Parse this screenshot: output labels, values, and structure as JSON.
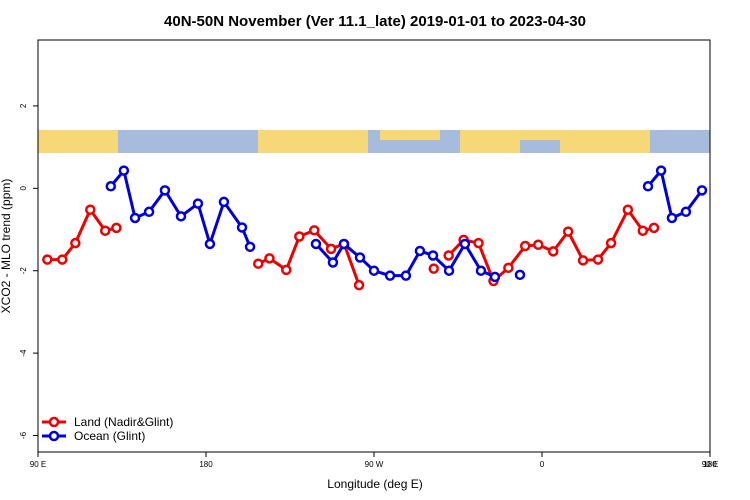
{
  "chart_data": {
    "type": "line",
    "title": "40N-50N November (Ver 11.1_late)   2019-01-01 to 2023-04-30",
    "xlabel": "Longitude (deg E)",
    "ylabel": "XCO2 - MLO trend (ppm)",
    "xlim": [
      90,
      450
    ],
    "ylim": [
      -6.4,
      3.6
    ],
    "xticks": [
      {
        "value": 90,
        "label": "90 E"
      },
      180,
      {
        "value": 270,
        "label": "90 W"
      },
      {
        "value": 360,
        "label": "0"
      },
      {
        "value": 450,
        "label": "90 E"
      },
      {
        "value": 540,
        "label": "180"
      }
    ],
    "yticks": [
      2,
      0,
      -2,
      -4,
      -6
    ],
    "legend": "bottom-left",
    "series": [
      {
        "name": "Land (Nadir&Glint)",
        "color": "#ee0000",
        "x": [
          95,
          103,
          110,
          118,
          126,
          132,
          170,
          208,
          214,
          223,
          230,
          238,
          247,
          254,
          262,
          282,
          302,
          306,
          310,
          318,
          326,
          334,
          342,
          351,
          358,
          366,
          374,
          382,
          390,
          397,
          406,
          414,
          420
        ],
        "values": [
          -1.73,
          -1.73,
          -1.33,
          -0.52,
          -1.03,
          -0.96,
          null,
          -1.83,
          -1.7,
          -1.98,
          -1.17,
          -1.02,
          -1.47,
          -1.35,
          -2.35,
          null,
          -1.95,
          null,
          -1.63,
          -1.25,
          -1.33,
          -2.25,
          -1.93,
          -1.4,
          -1.37,
          -1.53,
          -1.05,
          -1.75,
          -1.73,
          -1.33,
          -0.52,
          -1.03,
          -0.96
        ]
      },
      {
        "name": "Ocean (Glint)",
        "color": "#0000dd",
        "x": [
          129,
          136,
          142,
          149.5,
          158,
          166.6,
          175.7,
          182.1,
          189.6,
          199.3,
          203.6,
          221,
          238.9,
          248,
          253.9,
          262.5,
          270,
          278.6,
          287.1,
          294.6,
          301.6,
          310.2,
          318.7,
          327.3,
          334.8,
          341,
          348.2,
          382,
          416.8,
          423.8,
          429.6,
          437.1,
          445.7
        ],
        "values": [
          0.05,
          0.43,
          -0.72,
          -0.57,
          -0.05,
          -0.68,
          -0.37,
          -1.35,
          -0.33,
          -0.95,
          -1.42,
          null,
          -1.35,
          -1.8,
          -1.35,
          -1.68,
          -2.0,
          -2.12,
          -2.12,
          -1.52,
          -1.63,
          -2.0,
          -1.35,
          -2.0,
          -2.15,
          null,
          -2.1,
          null,
          0.05,
          0.43,
          -0.72,
          -0.57,
          -0.05
        ]
      }
    ]
  }
}
